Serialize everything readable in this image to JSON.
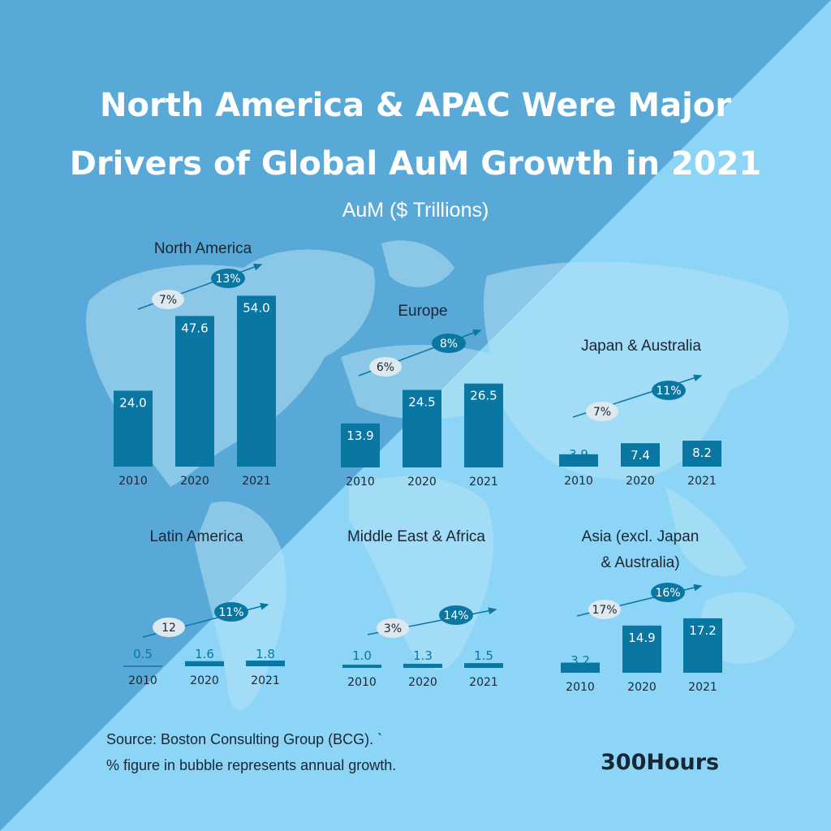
{
  "title_line1": "North America & APAC Were Major",
  "title_line2": "Drivers of Global AuM Growth in 2021",
  "subtitle": "AuM ($ Trillions)",
  "source_line1": "Source: Boston Consulting Group (BCG). `",
  "source_line2": "% figure in bubble represents annual growth.",
  "brand": "300Hours",
  "colors": {
    "bg_dark": "#58a9d7",
    "bg_light": "#8cd5f6",
    "map": "#a8dbf2",
    "bar": "#0a77a3",
    "bubble_dark": "#0a77a3",
    "bubble_light": "#dde9ee",
    "label_dark": "#1a2633"
  },
  "chart_data": [
    {
      "type": "bar",
      "title": "North America",
      "categories": [
        "2010",
        "2020",
        "2021"
      ],
      "values": [
        24.0,
        47.6,
        54.0
      ],
      "value_labels": [
        "24.0",
        "47.6",
        "54.0"
      ],
      "growth_bubbles": [
        "7%",
        "13%"
      ]
    },
    {
      "type": "bar",
      "title": "Europe",
      "categories": [
        "2010",
        "2020",
        "2021"
      ],
      "values": [
        13.9,
        24.5,
        26.5
      ],
      "value_labels": [
        "13.9",
        "24.5",
        "26.5"
      ],
      "growth_bubbles": [
        "6%",
        "8%"
      ]
    },
    {
      "type": "bar",
      "title": "Japan & Australia",
      "categories": [
        "2010",
        "2020",
        "2021"
      ],
      "values": [
        3.9,
        7.4,
        8.2
      ],
      "value_labels": [
        "3.9",
        "7.4",
        "8.2"
      ],
      "growth_bubbles": [
        "7%",
        "11%"
      ]
    },
    {
      "type": "bar",
      "title": "Latin America",
      "categories": [
        "2010",
        "2020",
        "2021"
      ],
      "values": [
        0.5,
        1.6,
        1.8
      ],
      "value_labels": [
        "0.5",
        "1.6",
        "1.8"
      ],
      "growth_bubbles": [
        "12",
        "11%"
      ]
    },
    {
      "type": "bar",
      "title": "Middle East & Africa",
      "categories": [
        "2010",
        "2020",
        "2021"
      ],
      "values": [
        1.0,
        1.3,
        1.5
      ],
      "value_labels": [
        "1.0",
        "1.3",
        "1.5"
      ],
      "growth_bubbles": [
        "3%",
        "14%"
      ]
    },
    {
      "type": "bar",
      "title": "Asia (excl. Japan & Australia)",
      "categories": [
        "2010",
        "2020",
        "2021"
      ],
      "values": [
        3.2,
        14.9,
        17.2
      ],
      "value_labels": [
        "3.2",
        "14.9",
        "17.2"
      ],
      "growth_bubbles": [
        "17%",
        "16%"
      ]
    }
  ]
}
